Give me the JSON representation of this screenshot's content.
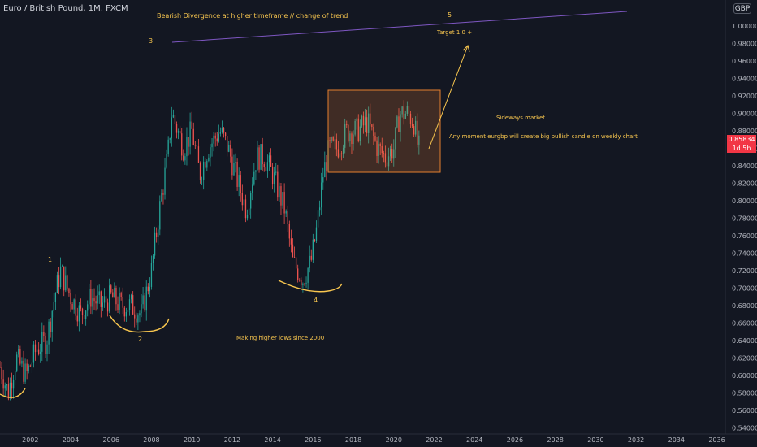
{
  "header": {
    "symbol": "Euro / British Pound, 1M, FXCM",
    "currency": "GBP"
  },
  "last_price": {
    "value": "0.85834",
    "countdown": "1d 5h",
    "color": "#f23645"
  },
  "colors": {
    "up": "#26a69a",
    "down": "#ef5350",
    "annotation": "#f9c74f",
    "trendline": "#7e57c2",
    "box_fill": "#f5833333",
    "box_stroke": "#e57f2f"
  },
  "annotations": {
    "title": "Bearish Divergence at higher timeframe // change of trend",
    "wave_1": "1",
    "wave_2": "2",
    "wave_3": "3",
    "wave_4": "4",
    "wave_5": "5",
    "target": "Target 1.0 +",
    "sideways": "Sideways market",
    "note": "Any moment eurgbp will create big bullish candle on weekly chart",
    "higher_lows": "Making higher lows since 2000"
  },
  "chart_data": {
    "type": "candlestick",
    "x_ticks": [
      "2002",
      "2004",
      "2006",
      "2008",
      "2010",
      "2012",
      "2014",
      "2016",
      "2018",
      "2020",
      "2022",
      "2024",
      "2026",
      "2028",
      "2030",
      "2032",
      "2034",
      "2036"
    ],
    "y_ticks": [
      "1.00000",
      "0.98000",
      "0.96000",
      "0.94000",
      "0.92000",
      "0.90000",
      "0.88000",
      "0.86000",
      "0.84000",
      "0.82000",
      "0.80000",
      "0.78000",
      "0.76000",
      "0.74000",
      "0.72000",
      "0.70000",
      "0.68000",
      "0.66000",
      "0.64000",
      "0.62000",
      "0.60000",
      "0.58000",
      "0.56000",
      "0.54000"
    ],
    "ylim": [
      0.535,
      1.012
    ],
    "xlim": [
      2000.5,
      2036.3
    ],
    "price_path": [
      [
        2000.5,
        0.61
      ],
      [
        2000.9,
        0.58
      ],
      [
        2001.3,
        0.62
      ],
      [
        2001.8,
        0.6
      ],
      [
        2002.3,
        0.63
      ],
      [
        2002.8,
        0.64
      ],
      [
        2003.2,
        0.69
      ],
      [
        2003.5,
        0.72
      ],
      [
        2004.0,
        0.69
      ],
      [
        2004.5,
        0.67
      ],
      [
        2005.0,
        0.69
      ],
      [
        2005.5,
        0.68
      ],
      [
        2006.0,
        0.69
      ],
      [
        2006.5,
        0.68
      ],
      [
        2007.0,
        0.68
      ],
      [
        2007.5,
        0.67
      ],
      [
        2008.0,
        0.72
      ],
      [
        2008.4,
        0.79
      ],
      [
        2008.8,
        0.85
      ],
      [
        2009.0,
        0.9
      ],
      [
        2009.3,
        0.88
      ],
      [
        2009.6,
        0.86
      ],
      [
        2010.0,
        0.88
      ],
      [
        2010.4,
        0.83
      ],
      [
        2010.8,
        0.86
      ],
      [
        2011.4,
        0.88
      ],
      [
        2011.8,
        0.86
      ],
      [
        2012.3,
        0.82
      ],
      [
        2012.7,
        0.79
      ],
      [
        2013.2,
        0.85
      ],
      [
        2013.6,
        0.85
      ],
      [
        2014.0,
        0.83
      ],
      [
        2014.6,
        0.79
      ],
      [
        2015.0,
        0.73
      ],
      [
        2015.5,
        0.71
      ],
      [
        2015.9,
        0.73
      ],
      [
        2016.2,
        0.77
      ],
      [
        2016.5,
        0.83
      ],
      [
        2016.8,
        0.86
      ],
      [
        2017.2,
        0.86
      ],
      [
        2017.7,
        0.88
      ],
      [
        2018.2,
        0.88
      ],
      [
        2018.7,
        0.89
      ],
      [
        2019.2,
        0.86
      ],
      [
        2019.6,
        0.85
      ],
      [
        2020.0,
        0.86
      ],
      [
        2020.3,
        0.9
      ],
      [
        2020.7,
        0.9
      ],
      [
        2021.0,
        0.89
      ],
      [
        2021.2,
        0.86
      ]
    ]
  }
}
